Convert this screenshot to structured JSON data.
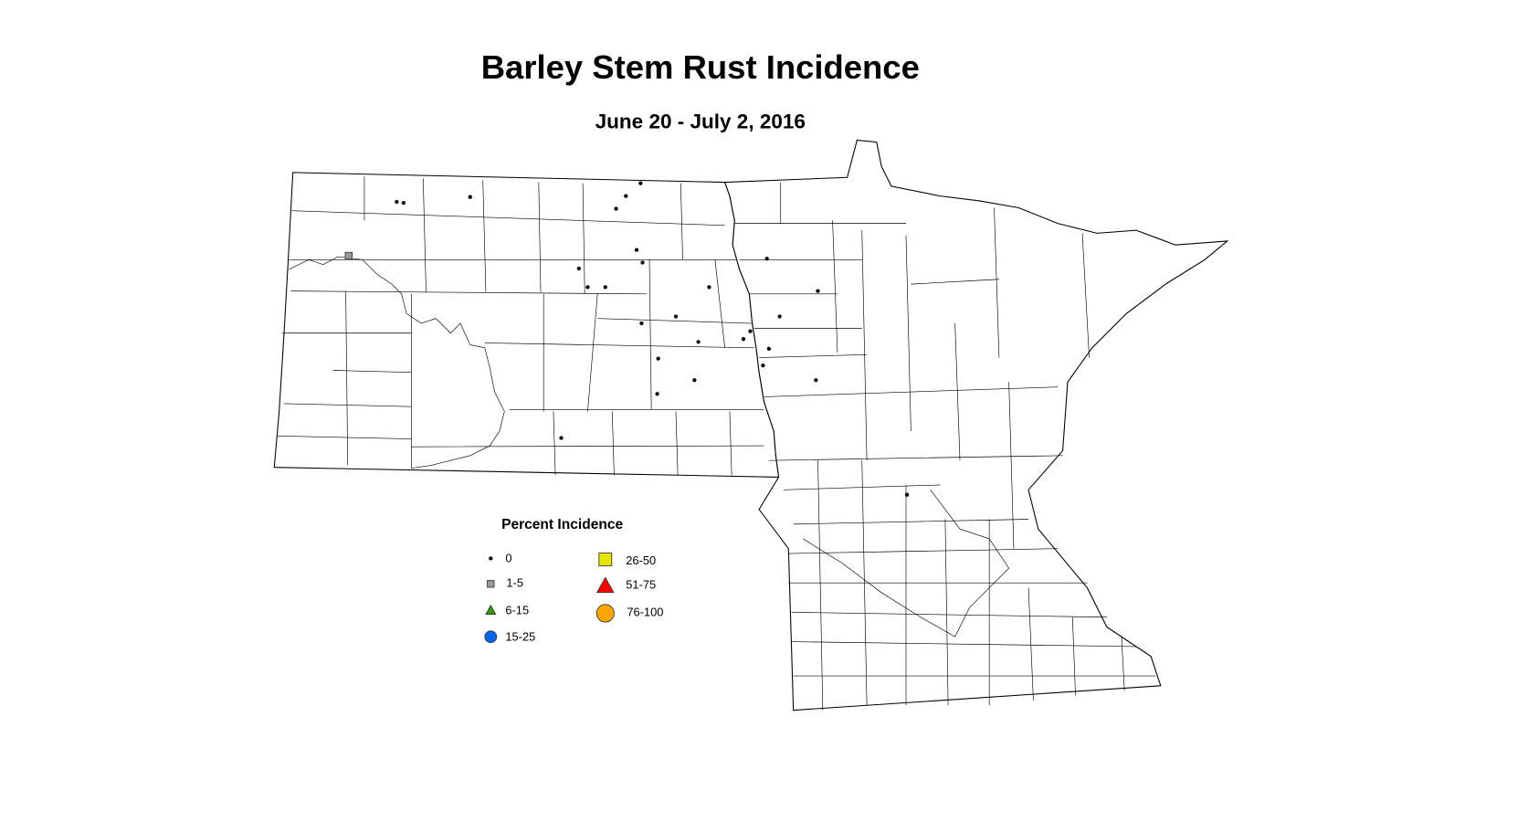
{
  "title": "Barley Stem Rust Incidence",
  "subtitle": "June 20 - July 2, 2016",
  "legend": {
    "title": "Percent Incidence",
    "items": [
      {
        "label": "0",
        "symbol": "dot",
        "color": "#000000"
      },
      {
        "label": "1-5",
        "symbol": "square",
        "color": "#999999"
      },
      {
        "label": "6-15",
        "symbol": "triangle",
        "color": "#339900"
      },
      {
        "label": "15-25",
        "symbol": "circle",
        "color": "#0066ee"
      },
      {
        "label": "26-50",
        "symbol": "square",
        "color": "#e6e600"
      },
      {
        "label": "51-75",
        "symbol": "triangle",
        "color": "#ff0000"
      },
      {
        "label": "76-100",
        "symbol": "circle",
        "color": "#ffa500"
      }
    ]
  }
}
